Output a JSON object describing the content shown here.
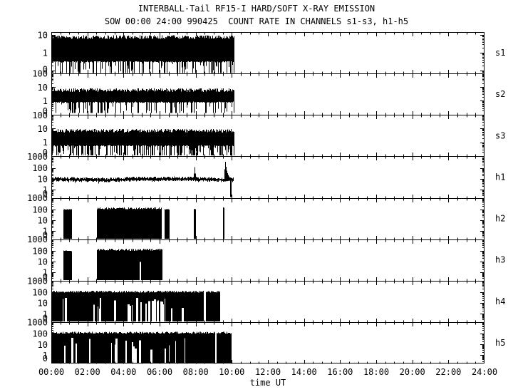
{
  "chart_data": {
    "type": "line",
    "title": "INTERBALL-Tail RF15-I HARD/SOFT X-RAY EMISSION",
    "subtitle": "SOW 00:00 24:00 990425  COUNT RATE IN CHANNELS s1-s3, h1-h5",
    "xlabel": "time UT",
    "x_range_hours": [
      0,
      24
    ],
    "x_tick_step_hours": 2,
    "x_minor_step_hours": 0.5,
    "x_ticks": [
      "00:00",
      "02:00",
      "04:00",
      "06:00",
      "08:00",
      "10:00",
      "12:00",
      "14:00",
      "16:00",
      "18:00",
      "20:00",
      "22:00",
      "24:00"
    ],
    "y_scale": "log",
    "grid": false,
    "legend": "none",
    "colors": {
      "fg": "#000000",
      "bg": "#ffffff"
    },
    "data_time_span_hours": [
      0,
      10.1
    ],
    "panels": [
      {
        "label": "s1",
        "yticks": [
          {
            "text": "10",
            "f": 0.07
          },
          {
            "text": "1",
            "f": 0.5
          }
        ],
        "decades_f": [
          0.07,
          0.5,
          0.93
        ],
        "pattern": {
          "kind": "noise_band",
          "t0": 0,
          "t1": 10.1,
          "top_f": 0.12,
          "solid_f": 0.7,
          "spike_p": 0.42,
          "spike_max_f": 0.985
        }
      },
      {
        "label": "s2",
        "top_label": "100",
        "overlap_zero": true,
        "yticks": [
          {
            "text": "10",
            "f": 0.33
          },
          {
            "text": "1",
            "f": 0.66
          }
        ],
        "decades_f": [
          0,
          0.33,
          0.66,
          0.99
        ],
        "pattern": {
          "kind": "noise_band",
          "t0": 0,
          "t1": 10.12,
          "top_f": 0.4,
          "solid_f": 0.68,
          "spike_p": 0.38,
          "spike_max_f": 0.95
        }
      },
      {
        "label": "s3",
        "top_label": "100",
        "overlap_zero": true,
        "yticks": [
          {
            "text": "10",
            "f": 0.33
          },
          {
            "text": "1",
            "f": 0.66
          }
        ],
        "decades_f": [
          0,
          0.33,
          0.66,
          0.99
        ],
        "pattern": {
          "kind": "noise_band",
          "t0": 0,
          "t1": 10.1,
          "top_f": 0.38,
          "solid_f": 0.73,
          "spike_p": 0.58,
          "spike_max_f": 0.975
        }
      },
      {
        "label": "h1",
        "top_label": "1000",
        "overlap_zero": true,
        "yticks": [
          {
            "text": "100",
            "f": 0.28
          },
          {
            "text": "10",
            "f": 0.54
          },
          {
            "text": "1",
            "f": 0.8
          }
        ],
        "decades_f": [
          0,
          0.28,
          0.54,
          0.8,
          1.0
        ],
        "pattern": {
          "kind": "trace",
          "t0": 0,
          "t1": 10.06,
          "level_f": 0.56,
          "drop_t": 9.9,
          "spikes": [
            {
              "t": 7.93,
              "top_f": 0.23,
              "decay": 0.05
            },
            {
              "t": 9.62,
              "top_f": 0.09,
              "decay": 0.12
            }
          ]
        }
      },
      {
        "label": "h2",
        "top_label": "1000",
        "overlap_zero": true,
        "yticks": [
          {
            "text": "100",
            "f": 0.28
          },
          {
            "text": "10",
            "f": 0.54
          },
          {
            "text": "1",
            "f": 0.8
          }
        ],
        "decades_f": [
          0,
          0.28,
          0.54,
          0.8,
          1.0
        ],
        "pattern": {
          "kind": "blocks",
          "blocks": [
            {
              "t0": 0.67,
              "t1": 1.12,
              "top_f": 0.28
            },
            {
              "t0": 2.53,
              "t1": 6.06,
              "top_f": 0.26,
              "noisy": true
            },
            {
              "t0": 6.28,
              "t1": 6.52,
              "top_f": 0.28
            },
            {
              "t0": 7.9,
              "t1": 7.97,
              "top_f": 0.27
            },
            {
              "t0": 9.5,
              "t1": 9.57,
              "top_f": 0.24
            }
          ]
        }
      },
      {
        "label": "h3",
        "top_label": "1000",
        "overlap_zero": true,
        "yticks": [
          {
            "text": "100",
            "f": 0.28
          },
          {
            "text": "10",
            "f": 0.54
          },
          {
            "text": "1",
            "f": 0.8
          }
        ],
        "decades_f": [
          0,
          0.28,
          0.54,
          0.8,
          1.0
        ],
        "pattern": {
          "kind": "blocks",
          "blocks": [
            {
              "t0": 0.67,
              "t1": 1.12,
              "top_f": 0.28
            },
            {
              "t0": 2.53,
              "t1": 6.1,
              "top_f": 0.26,
              "noisy": true,
              "gaps": [
                {
                  "t": 4.94,
                  "up_f": 0.55
                }
              ]
            }
          ]
        }
      },
      {
        "label": "h4",
        "top_label": "1000",
        "overlap_zero": true,
        "yticks": [
          {
            "text": "100",
            "f": 0.28
          },
          {
            "text": "10",
            "f": 0.54
          },
          {
            "text": "1",
            "f": 0.8
          }
        ],
        "decades_f": [
          0,
          0.28,
          0.54,
          0.8,
          1.0
        ],
        "pattern": {
          "kind": "dense",
          "t0": 0,
          "t1": 9.33,
          "top_f": 0.27,
          "gap_p": 0.25,
          "gap_up_f": 0.55,
          "gap_regions": [
            [
              0.55,
              0.78
            ],
            [
              2.1,
              3.6
            ],
            [
              4.15,
              7.35
            ]
          ],
          "full_gaps": [
            [
              8.42,
              8.56
            ]
          ]
        }
      },
      {
        "label": "h5",
        "top_label": "1000",
        "overlap_zero": true,
        "bottom_label": "0",
        "yticks": [
          {
            "text": "100",
            "f": 0.28
          },
          {
            "text": "10",
            "f": 0.54
          },
          {
            "text": "1",
            "f": 0.8
          }
        ],
        "decades_f": [
          0,
          0.28,
          0.54,
          0.8,
          1.0
        ],
        "pattern": {
          "kind": "dense",
          "t0": 0,
          "t1": 9.93,
          "top_f": 0.26,
          "gap_p": 0.17,
          "gap_up_f": 0.52,
          "gap_regions": [
            [
              0.45,
              2.4
            ],
            [
              3.25,
              7.4
            ]
          ],
          "full_gaps": [
            [
              9.07,
              9.12
            ]
          ]
        }
      }
    ]
  }
}
